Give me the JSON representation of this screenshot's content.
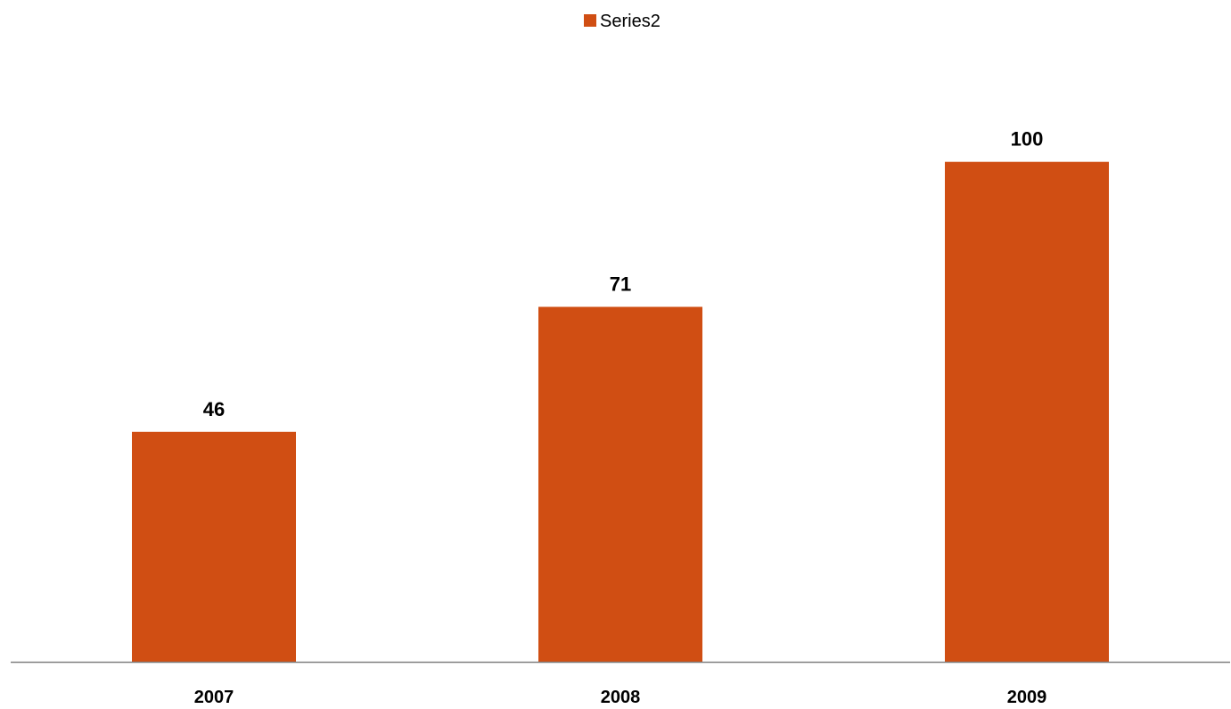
{
  "chart_data": {
    "type": "bar",
    "title": "",
    "xlabel": "",
    "ylabel": "",
    "categories": [
      "2007",
      "2008",
      "2009"
    ],
    "series": [
      {
        "name": "Series2",
        "values": [
          46,
          71,
          100
        ],
        "color": "#D04E13"
      }
    ],
    "data_labels": [
      "46",
      "71",
      "100"
    ],
    "ylim": [
      0,
      111
    ],
    "grid": false,
    "legend": {
      "position": "top-center",
      "entries": [
        "Series2"
      ]
    },
    "axis_line_color": "#808080"
  }
}
